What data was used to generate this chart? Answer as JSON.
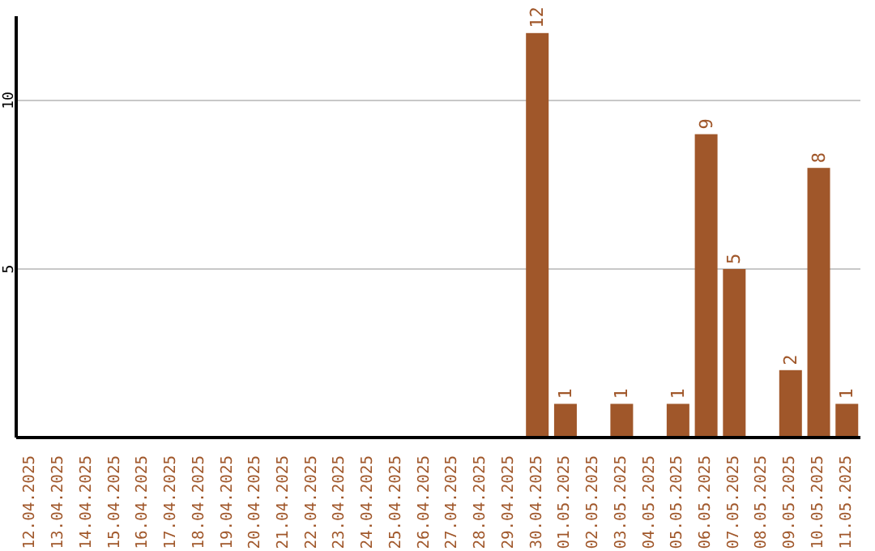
{
  "chart_data": {
    "type": "bar",
    "categories": [
      "12.04.2025",
      "13.04.2025",
      "14.04.2025",
      "15.04.2025",
      "16.04.2025",
      "17.04.2025",
      "18.04.2025",
      "19.04.2025",
      "20.04.2025",
      "21.04.2025",
      "22.04.2025",
      "23.04.2025",
      "24.04.2025",
      "25.04.2025",
      "26.04.2025",
      "27.04.2025",
      "28.04.2025",
      "29.04.2025",
      "30.04.2025",
      "01.05.2025",
      "02.05.2025",
      "03.05.2025",
      "04.05.2025",
      "05.05.2025",
      "06.05.2025",
      "07.05.2025",
      "08.05.2025",
      "09.05.2025",
      "10.05.2025",
      "11.05.2025"
    ],
    "values": [
      0,
      0,
      0,
      0,
      0,
      0,
      0,
      0,
      0,
      0,
      0,
      0,
      0,
      0,
      0,
      0,
      0,
      0,
      12,
      1,
      0,
      1,
      0,
      1,
      9,
      5,
      0,
      2,
      8,
      1
    ],
    "value_labels": [
      null,
      null,
      null,
      null,
      null,
      null,
      null,
      null,
      null,
      null,
      null,
      null,
      null,
      null,
      null,
      null,
      null,
      null,
      "12",
      "1",
      null,
      "1",
      null,
      "1",
      "9",
      "5",
      null,
      "2",
      "8",
      "1"
    ],
    "color": "#a0572a",
    "ylim": [
      0,
      12.5
    ],
    "yticks": [
      5,
      10
    ],
    "grid": "y"
  }
}
